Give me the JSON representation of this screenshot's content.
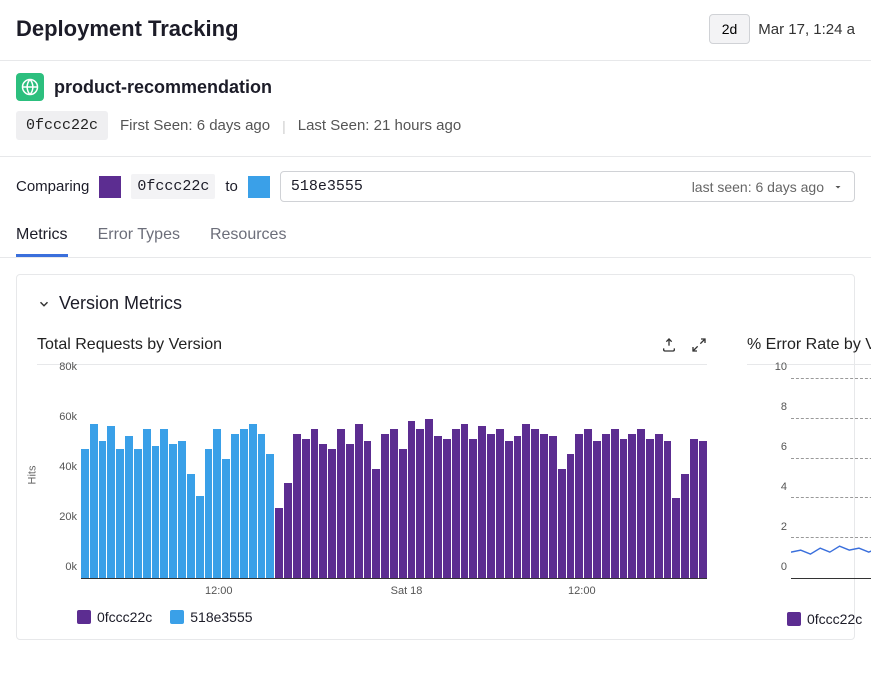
{
  "header": {
    "title": "Deployment Tracking",
    "time_range_label": "2d",
    "time_display": "Mar 17, 1:24 a"
  },
  "service": {
    "name": "product-recommendation",
    "icon_color": "#2cbf7e"
  },
  "meta": {
    "commit": "0fccc22c",
    "first_seen_label": "First Seen: 6 days ago",
    "last_seen_label": "Last Seen: 21 hours ago"
  },
  "compare": {
    "label": "Comparing",
    "from_commit": "0fccc22c",
    "from_color": "#5c2d91",
    "to_word": "to",
    "to_color": "#3aa0e8",
    "to_commit": "518e3555",
    "select_hint": "last seen: 6 days ago"
  },
  "tabs": [
    "Metrics",
    "Error Types",
    "Resources"
  ],
  "active_tab": 0,
  "section": {
    "title": "Version Metrics"
  },
  "chart1": {
    "type": "bar",
    "title": "Total Requests by Version",
    "y_label": "Hits",
    "ylim": [
      0,
      80000
    ],
    "ytick_step": 20000,
    "y_ticks": [
      "0k",
      "20k",
      "40k",
      "60k",
      "80k"
    ],
    "background_color": "#ffffff",
    "axis_text_color": "#555555",
    "x_ticks": [
      "12:00",
      "Sat 18",
      "12:00"
    ],
    "x_tick_positions": [
      0.22,
      0.52,
      0.8
    ],
    "bars": [
      {
        "v": 52000,
        "c": "#3aa0e8"
      },
      {
        "v": 62000,
        "c": "#3aa0e8"
      },
      {
        "v": 55000,
        "c": "#3aa0e8"
      },
      {
        "v": 61000,
        "c": "#3aa0e8"
      },
      {
        "v": 52000,
        "c": "#3aa0e8"
      },
      {
        "v": 57000,
        "c": "#3aa0e8"
      },
      {
        "v": 52000,
        "c": "#3aa0e8"
      },
      {
        "v": 60000,
        "c": "#3aa0e8"
      },
      {
        "v": 53000,
        "c": "#3aa0e8"
      },
      {
        "v": 60000,
        "c": "#3aa0e8"
      },
      {
        "v": 54000,
        "c": "#3aa0e8"
      },
      {
        "v": 55000,
        "c": "#3aa0e8"
      },
      {
        "v": 42000,
        "c": "#3aa0e8"
      },
      {
        "v": 33000,
        "c": "#3aa0e8"
      },
      {
        "v": 52000,
        "c": "#3aa0e8"
      },
      {
        "v": 60000,
        "c": "#3aa0e8"
      },
      {
        "v": 48000,
        "c": "#3aa0e8"
      },
      {
        "v": 58000,
        "c": "#3aa0e8"
      },
      {
        "v": 60000,
        "c": "#3aa0e8"
      },
      {
        "v": 62000,
        "c": "#3aa0e8"
      },
      {
        "v": 58000,
        "c": "#3aa0e8"
      },
      {
        "v": 50000,
        "c": "#3aa0e8"
      },
      {
        "v": 28000,
        "c": "#5c2d91"
      },
      {
        "v": 38000,
        "c": "#5c2d91"
      },
      {
        "v": 58000,
        "c": "#5c2d91"
      },
      {
        "v": 56000,
        "c": "#5c2d91"
      },
      {
        "v": 60000,
        "c": "#5c2d91"
      },
      {
        "v": 54000,
        "c": "#5c2d91"
      },
      {
        "v": 52000,
        "c": "#5c2d91"
      },
      {
        "v": 60000,
        "c": "#5c2d91"
      },
      {
        "v": 54000,
        "c": "#5c2d91"
      },
      {
        "v": 62000,
        "c": "#5c2d91"
      },
      {
        "v": 55000,
        "c": "#5c2d91"
      },
      {
        "v": 44000,
        "c": "#5c2d91"
      },
      {
        "v": 58000,
        "c": "#5c2d91"
      },
      {
        "v": 60000,
        "c": "#5c2d91"
      },
      {
        "v": 52000,
        "c": "#5c2d91"
      },
      {
        "v": 63000,
        "c": "#5c2d91"
      },
      {
        "v": 60000,
        "c": "#5c2d91"
      },
      {
        "v": 64000,
        "c": "#5c2d91"
      },
      {
        "v": 57000,
        "c": "#5c2d91"
      },
      {
        "v": 56000,
        "c": "#5c2d91"
      },
      {
        "v": 60000,
        "c": "#5c2d91"
      },
      {
        "v": 62000,
        "c": "#5c2d91"
      },
      {
        "v": 56000,
        "c": "#5c2d91"
      },
      {
        "v": 61000,
        "c": "#5c2d91"
      },
      {
        "v": 58000,
        "c": "#5c2d91"
      },
      {
        "v": 60000,
        "c": "#5c2d91"
      },
      {
        "v": 55000,
        "c": "#5c2d91"
      },
      {
        "v": 57000,
        "c": "#5c2d91"
      },
      {
        "v": 62000,
        "c": "#5c2d91"
      },
      {
        "v": 60000,
        "c": "#5c2d91"
      },
      {
        "v": 58000,
        "c": "#5c2d91"
      },
      {
        "v": 57000,
        "c": "#5c2d91"
      },
      {
        "v": 44000,
        "c": "#5c2d91"
      },
      {
        "v": 50000,
        "c": "#5c2d91"
      },
      {
        "v": 58000,
        "c": "#5c2d91"
      },
      {
        "v": 60000,
        "c": "#5c2d91"
      },
      {
        "v": 55000,
        "c": "#5c2d91"
      },
      {
        "v": 58000,
        "c": "#5c2d91"
      },
      {
        "v": 60000,
        "c": "#5c2d91"
      },
      {
        "v": 56000,
        "c": "#5c2d91"
      },
      {
        "v": 58000,
        "c": "#5c2d91"
      },
      {
        "v": 60000,
        "c": "#5c2d91"
      },
      {
        "v": 56000,
        "c": "#5c2d91"
      },
      {
        "v": 58000,
        "c": "#5c2d91"
      },
      {
        "v": 55000,
        "c": "#5c2d91"
      },
      {
        "v": 32000,
        "c": "#5c2d91"
      },
      {
        "v": 42000,
        "c": "#5c2d91"
      },
      {
        "v": 56000,
        "c": "#5c2d91"
      },
      {
        "v": 55000,
        "c": "#5c2d91"
      }
    ],
    "legend": [
      {
        "label": "0fccc22c",
        "color": "#5c2d91"
      },
      {
        "label": "518e3555",
        "color": "#3aa0e8"
      }
    ]
  },
  "chart2": {
    "type": "line",
    "title": "% Error Rate by V",
    "ylim": [
      0,
      10
    ],
    "ytick_step": 2,
    "y_ticks": [
      "0",
      "2",
      "4",
      "6",
      "8",
      "10"
    ],
    "line_color": "#3a6fdc",
    "axis_text_color": "#555555",
    "background_color": "#ffffff",
    "grid_color": "#999999",
    "points": [
      1.3,
      1.4,
      1.2,
      1.5,
      1.3,
      1.6,
      1.4,
      1.5,
      1.3,
      1.5,
      1.7,
      1.5,
      1.6,
      1.4,
      1.8
    ],
    "legend": [
      {
        "label": "0fccc22c",
        "color": "#5c2d91"
      }
    ]
  }
}
